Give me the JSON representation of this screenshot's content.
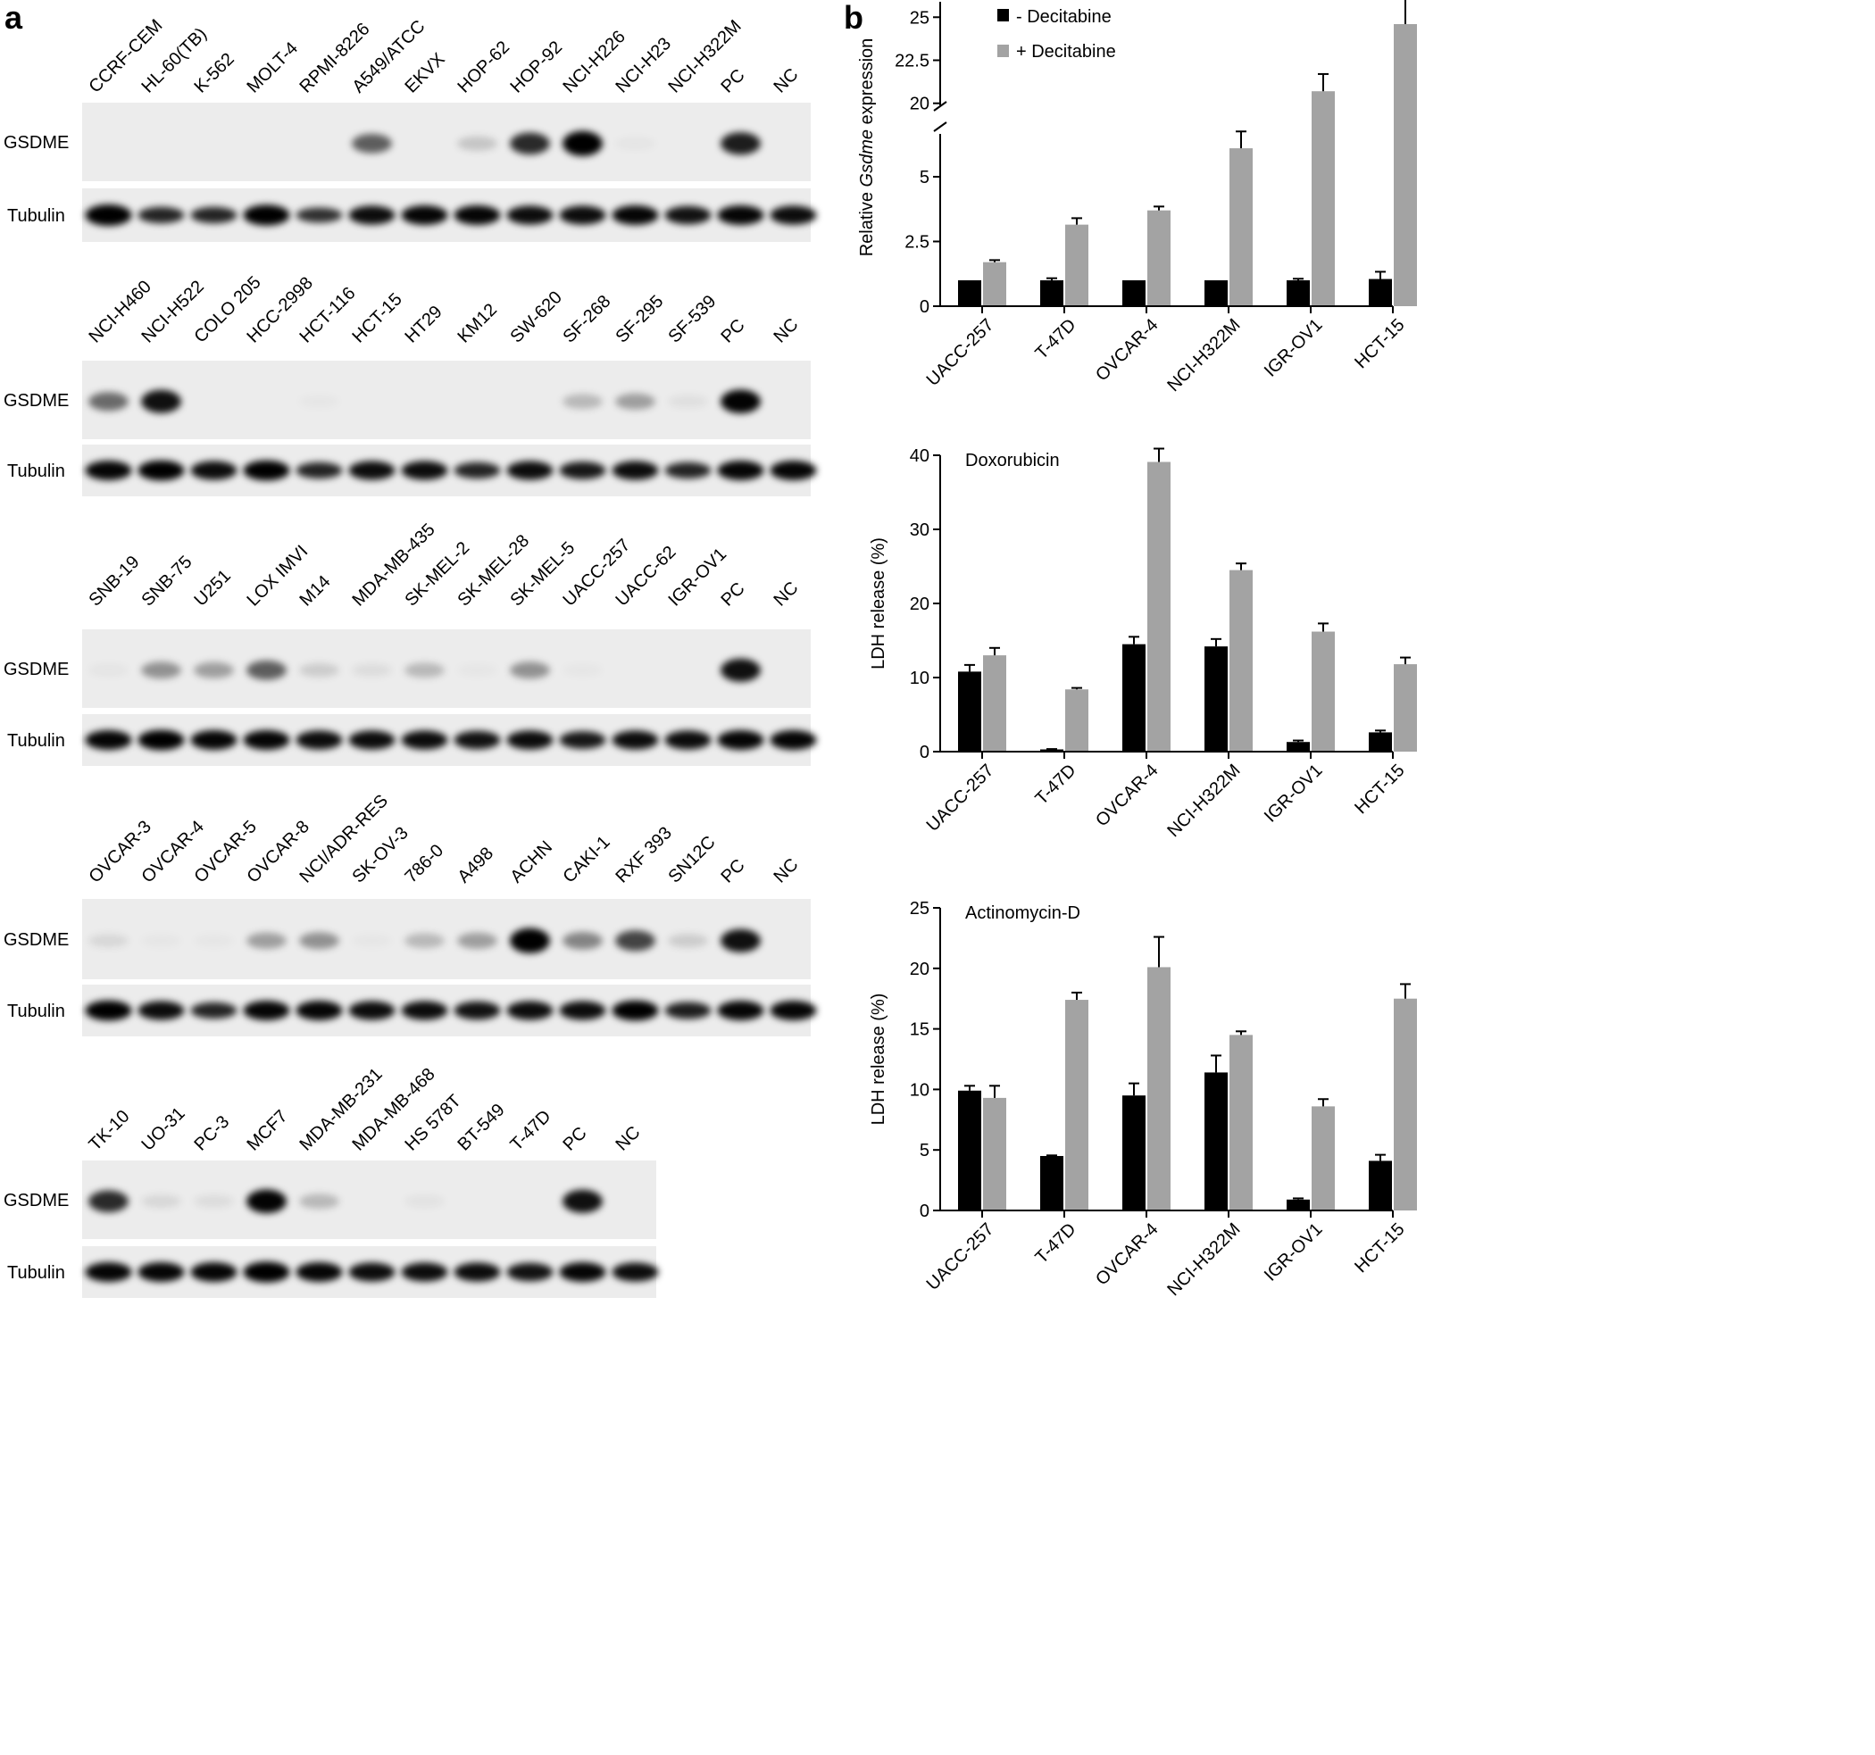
{
  "figure": {
    "panel_a_letter": "a",
    "panel_b_letter": "b",
    "row_labels": {
      "top": "GSDME",
      "bottom": "Tubulin"
    }
  },
  "blots": [
    {
      "lanes": [
        "CCRF-CEM",
        "HL-60(TB)",
        "K-562",
        "MOLT-4",
        "RPMI-8226",
        "A549/ATCC",
        "EKVX",
        "HOP-62",
        "HOP-92",
        "NCI-H226",
        "NCI-H23",
        "NCI-H322M",
        "PC",
        "NC"
      ],
      "gsdme": [
        0,
        0,
        0,
        0,
        0,
        0.55,
        0,
        0.15,
        0.75,
        1.0,
        0.03,
        0,
        0.8,
        0
      ],
      "tubulin": [
        1.0,
        0.6,
        0.6,
        0.95,
        0.5,
        0.8,
        0.85,
        0.85,
        0.8,
        0.8,
        0.85,
        0.75,
        0.85,
        0.8
      ]
    },
    {
      "lanes": [
        "NCI-H460",
        "NCI-H522",
        "COLO 205",
        "HCC-2998",
        "HCT-116",
        "HCT-15",
        "HT29",
        "KM12",
        "SW-620",
        "SF-268",
        "SF-295",
        "SF-539",
        "PC",
        "NC"
      ],
      "gsdme": [
        0.5,
        0.85,
        0,
        0,
        0.02,
        0,
        0,
        0,
        0,
        0.2,
        0.3,
        0.05,
        0.9,
        0
      ],
      "tubulin": [
        0.85,
        0.9,
        0.8,
        0.9,
        0.6,
        0.8,
        0.8,
        0.6,
        0.8,
        0.7,
        0.8,
        0.6,
        0.85,
        0.85
      ]
    },
    {
      "lanes": [
        "SNB-19",
        "SNB-75",
        "U251",
        "LOX IMVI",
        "M14",
        "MDA-MB-435",
        "SK-MEL-2",
        "SK-MEL-28",
        "SK-MEL-5",
        "UACC-257",
        "UACC-62",
        "IGR-OV1",
        "PC",
        "NC"
      ],
      "gsdme": [
        0.03,
        0.35,
        0.3,
        0.55,
        0.12,
        0.06,
        0.2,
        0.02,
        0.35,
        0.02,
        0,
        0,
        0.85,
        0
      ],
      "tubulin": [
        0.85,
        0.9,
        0.85,
        0.85,
        0.8,
        0.8,
        0.8,
        0.75,
        0.8,
        0.7,
        0.8,
        0.8,
        0.85,
        0.85
      ]
    },
    {
      "lanes": [
        "OVCAR-3",
        "OVCAR-4",
        "OVCAR-5",
        "OVCAR-8",
        "NCI/ADR-RES",
        "SK-OV-3",
        "786-0",
        "A498",
        "ACHN",
        "CAKI-1",
        "RXF 393",
        "SN12C",
        "PC",
        "NC"
      ],
      "gsdme": [
        0.08,
        0.02,
        0.02,
        0.3,
        0.35,
        0.02,
        0.2,
        0.3,
        1.0,
        0.4,
        0.65,
        0.12,
        0.85,
        0
      ],
      "tubulin": [
        0.9,
        0.8,
        0.6,
        0.85,
        0.85,
        0.8,
        0.8,
        0.75,
        0.8,
        0.8,
        0.9,
        0.65,
        0.85,
        0.85
      ]
    },
    {
      "lanes": [
        "TK-10",
        "UO-31",
        "PC-3",
        "MCF7",
        "MDA-MB-231",
        "MDA-MB-468",
        "HS 578T",
        "BT-549",
        "T-47D",
        "PC",
        "NC"
      ],
      "gsdme": [
        0.75,
        0.08,
        0.06,
        0.9,
        0.2,
        0,
        0.04,
        0,
        0,
        0.85,
        0
      ],
      "tubulin": [
        0.85,
        0.85,
        0.85,
        0.95,
        0.85,
        0.8,
        0.8,
        0.8,
        0.75,
        0.85,
        0.8
      ]
    }
  ],
  "chart_data": [
    {
      "type": "bar",
      "title": "",
      "xlabel": "",
      "ylabel_prefix": "Relative ",
      "ylabel_italic": "Gsdme",
      "ylabel_suffix": " expression",
      "categories": [
        "UACC-257",
        "T-47D",
        "OVCAR-4",
        "NCI-H322M",
        "IGR-OV1",
        "HCT-15"
      ],
      "series": [
        {
          "name": "- Decitabine",
          "values": [
            1.0,
            1.0,
            1.0,
            1.0,
            1.0,
            1.05
          ],
          "errors": [
            0.0,
            0.08,
            0.0,
            0.0,
            0.06,
            0.28
          ]
        },
        {
          "name": "+ Decitabine",
          "values": [
            1.7,
            3.15,
            3.7,
            6.1,
            20.7,
            24.6
          ],
          "errors": [
            0.08,
            0.25,
            0.15,
            0.65,
            1.0,
            1.9
          ]
        }
      ],
      "ylim_lower": [
        0,
        7
      ],
      "ylim_upper": [
        19,
        26
      ],
      "yticks_lower": [
        "0",
        "2.5",
        "5"
      ],
      "yticks_upper": [
        "20",
        "22.5",
        "25"
      ],
      "axis_break": true,
      "legend": "top"
    },
    {
      "type": "bar",
      "annotation": "Doxorubicin",
      "ylabel": "LDH release (%)",
      "categories": [
        "UACC-257",
        "T-47D",
        "OVCAR-4",
        "NCI-H322M",
        "IGR-OV1",
        "HCT-15"
      ],
      "series": [
        {
          "name": "- Decitabine",
          "values": [
            10.8,
            0.3,
            14.5,
            14.2,
            1.3,
            2.6
          ],
          "errors": [
            0.9,
            0.05,
            1.0,
            1.0,
            0.2,
            0.25
          ]
        },
        {
          "name": "+ Decitabine",
          "values": [
            13.0,
            8.4,
            39.1,
            24.5,
            16.2,
            11.8
          ],
          "errors": [
            1.0,
            0.2,
            1.8,
            0.9,
            1.1,
            0.9
          ]
        }
      ],
      "ylim": [
        0,
        40
      ],
      "yticks": [
        "0",
        "10",
        "20",
        "30",
        "40"
      ]
    },
    {
      "type": "bar",
      "annotation": "Actinomycin-D",
      "ylabel": "LDH release (%)",
      "categories": [
        "UACC-257",
        "T-47D",
        "OVCAR-4",
        "NCI-H322M",
        "IGR-OV1",
        "HCT-15"
      ],
      "series": [
        {
          "name": "- Decitabine",
          "values": [
            9.9,
            4.5,
            9.5,
            11.4,
            0.9,
            4.1
          ],
          "errors": [
            0.4,
            0.05,
            1.0,
            1.4,
            0.1,
            0.5
          ]
        },
        {
          "name": "+ Decitabine",
          "values": [
            9.3,
            17.4,
            20.1,
            14.5,
            8.6,
            17.5
          ],
          "errors": [
            1.0,
            0.6,
            2.5,
            0.3,
            0.6,
            1.2
          ]
        }
      ],
      "ylim": [
        0,
        25
      ],
      "yticks": [
        "0",
        "5",
        "10",
        "15",
        "20",
        "25"
      ]
    }
  ],
  "colors": {
    "minus": "#000000",
    "plus": "#a3a3a3",
    "blot_bg": "#ececec"
  }
}
